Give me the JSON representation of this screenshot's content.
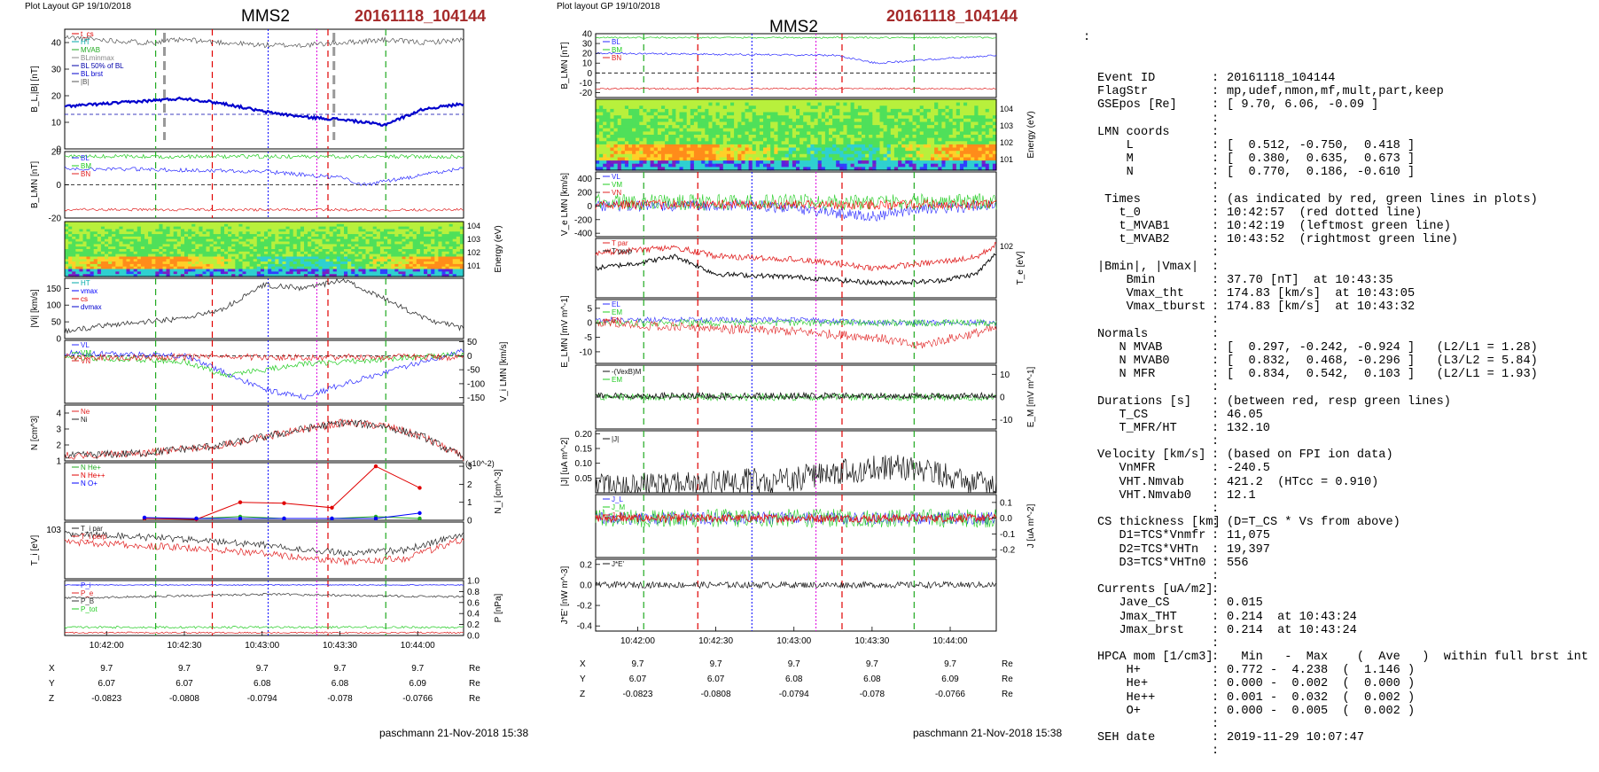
{
  "header": {
    "plot_layout_left": "Plot Layout GP 19/10/2018",
    "plot_layout_right": "Plot layout GP 19/10/2018",
    "spacecraft": "MMS2",
    "event": "20161118_104144",
    "footer": "paschmann 21-Nov-2018 15:38"
  },
  "colors": {
    "event_title": "#a52a2a",
    "bl_line": "#0000cd",
    "ve_red": "#ff0000",
    "marker_red": "#e00000",
    "marker_green": "#22aa22",
    "marker_magenta": "#dd00dd",
    "marker_blue": "#0000ff",
    "marker_gray": "#999999"
  },
  "time_axis": {
    "ticks": [
      "10:42:00",
      "10:42:30",
      "10:43:00",
      "10:43:30",
      "10:44:00"
    ],
    "pos_rows": [
      {
        "label": "X",
        "values": [
          "9.7",
          "9.7",
          "9.7",
          "9.7",
          "9.7"
        ],
        "unit": "Re"
      },
      {
        "label": "Y",
        "values": [
          "6.07",
          "6.07",
          "6.08",
          "6.08",
          "6.09"
        ],
        "unit": "Re"
      },
      {
        "label": "Z",
        "values": [
          "-0.0823",
          "-0.0808",
          "-0.0794",
          "-0.078",
          "-0.0766"
        ],
        "unit": "Re"
      }
    ]
  },
  "chart_data": [
    {
      "type": "line",
      "title": "MMS2 20161118_104144 (left column)",
      "panels": [
        {
          "id": "b_total",
          "ylabel": "B_L,|B| [nT]",
          "ylim": [
            0,
            45
          ],
          "yticks": [
            "0",
            "10",
            "20",
            "30",
            "40"
          ],
          "legend": [
            "t_cs",
            "HT",
            "MVAB",
            "BLminmax",
            "BL 50% of BL",
            "BL brst",
            "|B|"
          ],
          "series": [
            {
              "name": "|B|",
              "x": [
                0,
                0.1,
                0.2,
                0.3,
                0.4,
                0.5,
                0.6,
                0.7,
                0.8,
                0.9,
                1.0
              ],
              "values": [
                42,
                41,
                40,
                41,
                40,
                39,
                39,
                40,
                41,
                40,
                41
              ]
            },
            {
              "name": "BL brst",
              "x": [
                0,
                0.1,
                0.2,
                0.3,
                0.4,
                0.5,
                0.6,
                0.7,
                0.8,
                0.9,
                1.0
              ],
              "values": [
                16,
                17,
                18,
                19,
                17,
                14,
                12,
                11,
                9,
                15,
                17
              ]
            }
          ]
        },
        {
          "id": "b_lmn",
          "ylabel": "B_LMN [nT]",
          "ylim": [
            -20,
            20
          ],
          "yticks": [
            "-20",
            "0",
            "20"
          ],
          "legend": [
            "BL",
            "BM",
            "BN"
          ]
        },
        {
          "id": "ion_spectrogram",
          "ylabel": "Energy (eV)",
          "yticks": [
            "10^1",
            "10^2",
            "10^3",
            "10^4"
          ]
        },
        {
          "id": "vi_mag",
          "ylabel": "|Vi| [km/s]",
          "ylim": [
            0,
            180
          ],
          "yticks": [
            "0",
            "50",
            "100",
            "150"
          ],
          "legend": [
            "HT",
            "vmax",
            "cs",
            "dvmax"
          ]
        },
        {
          "id": "vi_lmn",
          "ylabel": "V_i LMN [km/s]",
          "ylim": [
            -170,
            55
          ],
          "yticks": [
            "50",
            "0",
            "-50",
            "-100",
            "-150"
          ],
          "legend": [
            "VL",
            "VM",
            "VN"
          ]
        },
        {
          "id": "density",
          "ylabel": "N [cm^3]",
          "ylim": [
            1,
            4.5
          ],
          "yticks": [
            "1",
            "2",
            "3",
            "4"
          ],
          "legend": [
            "Ne",
            "Ni"
          ]
        },
        {
          "id": "minor_ions",
          "ylabel": "N_i [cm^-3]",
          "ylim": [
            0,
            3.2
          ],
          "yticks": [
            "0",
            "1",
            "2",
            "3"
          ],
          "scale_note": "(x10^-2)",
          "legend": [
            "N He+",
            "N He++",
            "N O+"
          ],
          "series": [
            {
              "name": "N He+",
              "x": [
                0.2,
                0.33,
                0.44,
                0.55,
                0.67,
                0.78,
                0.89
              ],
              "values": [
                0.1,
                0.1,
                0.2,
                0.1,
                0.1,
                0.2,
                0.1
              ]
            },
            {
              "name": "N He++",
              "x": [
                0.2,
                0.33,
                0.44,
                0.55,
                0.67,
                0.78,
                0.89
              ],
              "values": [
                0.1,
                0.05,
                1.0,
                0.95,
                0.7,
                3.0,
                1.8
              ]
            },
            {
              "name": "N O+",
              "x": [
                0.2,
                0.33,
                0.44,
                0.55,
                0.67,
                0.78,
                0.89
              ],
              "values": [
                0.15,
                0.1,
                0.1,
                0.1,
                0.1,
                0.1,
                0.4
              ]
            }
          ]
        },
        {
          "id": "ti",
          "ylabel": "T_i [eV]",
          "yticks": [
            "10^3"
          ],
          "legend": [
            "T_i par",
            "T_i perp"
          ]
        },
        {
          "id": "pressure",
          "ylabel": "P [nPa]",
          "ylim": [
            0,
            1.0
          ],
          "yticks": [
            "0.0",
            "0.2",
            "0.4",
            "0.6",
            "0.8",
            "1.0"
          ],
          "legend": [
            "P_i",
            "P_e",
            "P_B",
            "P_tot"
          ]
        }
      ]
    },
    {
      "type": "line",
      "title": "MMS2 20161118_104144 (right column)",
      "panels": [
        {
          "id": "b_lmn",
          "ylabel": "B_LMN [nT]",
          "ylim": [
            -25,
            40
          ],
          "yticks": [
            "40",
            "30",
            "20",
            "10",
            "0",
            "-10",
            "-20"
          ],
          "legend": [
            "BL",
            "BM",
            "BN"
          ]
        },
        {
          "id": "electron_spectrogram",
          "ylabel": "Energy (eV)",
          "yticks": [
            "10^1",
            "10^2",
            "10^3",
            "10^4"
          ]
        },
        {
          "id": "ve_lmn",
          "ylabel": "V_e LMN [km/s]",
          "ylim": [
            -450,
            500
          ],
          "yticks": [
            "400",
            "200",
            "0",
            "-200",
            "-400"
          ],
          "legend": [
            "VL",
            "VM",
            "VN"
          ]
        },
        {
          "id": "te",
          "ylabel": "T_e [eV]",
          "yticks": [
            "10^2"
          ],
          "legend": [
            "T par",
            "T perp"
          ]
        },
        {
          "id": "e_lmn",
          "ylabel": "E_LMN [mV m^-1]",
          "ylim": [
            -14,
            8
          ],
          "yticks": [
            "5",
            "0",
            "-5",
            "-10"
          ],
          "legend": [
            "EL",
            "EM",
            "EN"
          ]
        },
        {
          "id": "em",
          "ylabel": "E_M [mV m^-1]",
          "ylim": [
            -14,
            14
          ],
          "yticks": [
            "10",
            "0",
            "-10"
          ],
          "legend": [
            "-(VexB)M",
            "EM"
          ]
        },
        {
          "id": "j_mag",
          "ylabel": "|J| [uA m^-2]",
          "ylim": [
            0,
            0.21
          ],
          "yticks": [
            "0.05",
            "0.10",
            "0.15",
            "0.20"
          ],
          "legend": [
            "|J|"
          ]
        },
        {
          "id": "j_comp",
          "ylabel": "J [uA m^-2]",
          "ylim": [
            -0.25,
            0.15
          ],
          "yticks": [
            "0.1",
            "0.0",
            "-0.1",
            "-0.2"
          ],
          "legend": [
            "J_L",
            "J_M",
            "J_N"
          ]
        },
        {
          "id": "jdote",
          "ylabel": "J*E' [nW m^-3]",
          "ylim": [
            -0.45,
            0.25
          ],
          "yticks": [
            "0.2",
            "0.0",
            "-0.2",
            "-0.4"
          ],
          "legend": [
            "J*E'"
          ]
        }
      ]
    }
  ],
  "summary": {
    "top_mark": ":",
    "rows": [
      {
        "k": "Event ID",
        "v": "20161118_104144"
      },
      {
        "k": "FlagStr",
        "v": "mp,udef,nmon,mf,mult,part,keep"
      },
      {
        "k": "GSEpos [Re]",
        "v": "[ 9.70, 6.06, -0.09 ]"
      },
      {
        "k": "",
        "v": ""
      },
      {
        "k": "LMN coords",
        "v": ""
      },
      {
        "k": "    L",
        "v": "[  0.512, -0.750,  0.418 ]"
      },
      {
        "k": "    M",
        "v": "[  0.380,  0.635,  0.673 ]"
      },
      {
        "k": "    N",
        "v": "[  0.770,  0.186, -0.610 ]"
      },
      {
        "k": "",
        "v": ""
      },
      {
        "k": " Times",
        "v": "(as indicated by red, green lines in plots)"
      },
      {
        "k": "   t_0",
        "v": "10:42:57  (red dotted line)"
      },
      {
        "k": "   t_MVAB1",
        "v": "10:42:19  (leftmost green line)"
      },
      {
        "k": "   t_MVAB2",
        "v": "10:43:52  (rightmost green line)"
      },
      {
        "k": "",
        "v": ""
      },
      {
        "k": "|Bmin|, |Vmax|",
        "v": ""
      },
      {
        "k": "    Bmin",
        "v": "37.70 [nT]  at 10:43:35"
      },
      {
        "k": "    Vmax_tht",
        "v": "174.83 [km/s]  at 10:43:05"
      },
      {
        "k": "    Vmax_tburst",
        "v": "174.83 [km/s]  at 10:43:32"
      },
      {
        "k": "",
        "v": ""
      },
      {
        "k": "Normals",
        "v": ""
      },
      {
        "k": "   N MVAB",
        "v": "[  0.297, -0.242, -0.924 ]   (L2/L1 = 1.28)"
      },
      {
        "k": "   N MVAB0",
        "v": "[  0.832,  0.468, -0.296 ]   (L3/L2 = 5.84)"
      },
      {
        "k": "   N MFR",
        "v": "[  0.834,  0.542,  0.103 ]   (L2/L1 = 1.93)"
      },
      {
        "k": "",
        "v": ""
      },
      {
        "k": "Durations [s]",
        "v": "(between red, resp green lines)"
      },
      {
        "k": "   T_CS",
        "v": "46.05"
      },
      {
        "k": "   T_MFR/HT",
        "v": "132.10"
      },
      {
        "k": "",
        "v": ""
      },
      {
        "k": "Velocity [km/s]",
        "v": "(based on FPI ion data)"
      },
      {
        "k": "   VnMFR",
        "v": "-240.5"
      },
      {
        "k": "   VHT.Nmvab",
        "v": "421.2  (HTcc = 0.910)"
      },
      {
        "k": "   VHT.Nmvab0",
        "v": "12.1"
      },
      {
        "k": "",
        "v": ""
      },
      {
        "k": "CS thickness [km]",
        "v": "(D=T_CS * Vs from above)"
      },
      {
        "k": "   D1=TCS*Vnmfr",
        "v": "11,075"
      },
      {
        "k": "   D2=TCS*VHTn",
        "v": "19,397"
      },
      {
        "k": "   D3=TCS*VHTn0",
        "v": "556"
      },
      {
        "k": "",
        "v": ""
      },
      {
        "k": "Currents [uA/m2]",
        "v": ""
      },
      {
        "k": "   Jave_CS",
        "v": "0.015"
      },
      {
        "k": "   Jmax_THT",
        "v": "0.214  at 10:43:24"
      },
      {
        "k": "   Jmax_brst",
        "v": "0.214  at 10:43:24"
      },
      {
        "k": "",
        "v": ""
      },
      {
        "k": "HPCA mom [1/cm3]",
        "v": "  Min   -  Max    (  Ave   )  within full brst int"
      },
      {
        "k": "    H+",
        "v": "0.772 -  4.238  (  1.146 )"
      },
      {
        "k": "    He+",
        "v": "0.000 -  0.002  (  0.000 )"
      },
      {
        "k": "    He++",
        "v": "0.001 -  0.032  (  0.002 )"
      },
      {
        "k": "    O+",
        "v": "0.000 -  0.005  (  0.002 )"
      },
      {
        "k": "",
        "v": ""
      },
      {
        "k": "SEH date",
        "v": "2019-11-29 10:07:47"
      },
      {
        "k": "",
        "v": ""
      }
    ]
  }
}
